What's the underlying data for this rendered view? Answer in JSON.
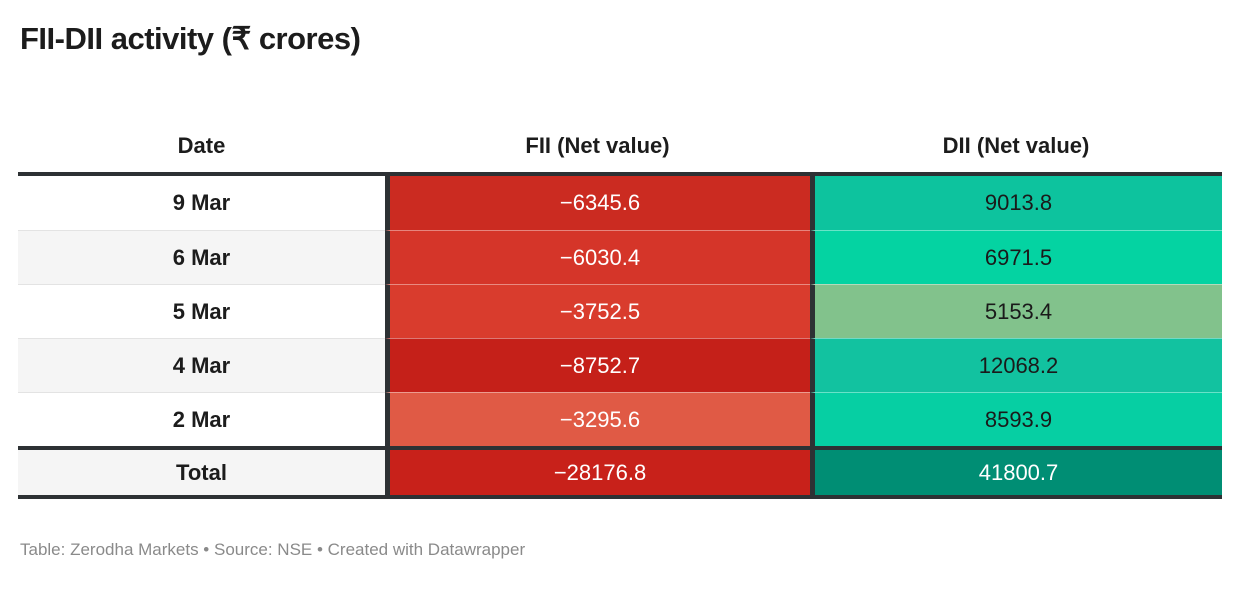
{
  "title": "FII-DII activity (₹ crores)",
  "table": {
    "headers": {
      "date": "Date",
      "fii": "FII (Net value)",
      "dii": "DII (Net value)"
    },
    "rows": [
      {
        "date": "9 Mar",
        "fii": "−6345.6",
        "dii": "9013.8",
        "date_bg": "#ffffff",
        "fii_bg": "#cb2b21",
        "dii_bg": "#0dc39e",
        "fii_fg": "#ffffff",
        "dii_fg": "#1a1a1a"
      },
      {
        "date": "6 Mar",
        "fii": "−6030.4",
        "dii": "6971.5",
        "date_bg": "#f5f5f5",
        "fii_bg": "#d53529",
        "dii_bg": "#04d3a2",
        "fii_fg": "#ffffff",
        "dii_fg": "#1a1a1a"
      },
      {
        "date": "5 Mar",
        "fii": "−3752.5",
        "dii": "5153.4",
        "date_bg": "#ffffff",
        "fii_bg": "#d93c2d",
        "dii_bg": "#82c28c",
        "fii_fg": "#ffffff",
        "dii_fg": "#1a1a1a"
      },
      {
        "date": "4 Mar",
        "fii": "−8752.7",
        "dii": "12068.2",
        "date_bg": "#f5f5f5",
        "fii_bg": "#c52019",
        "dii_bg": "#12c2a0",
        "fii_fg": "#ffffff",
        "dii_fg": "#1a1a1a"
      },
      {
        "date": "2 Mar",
        "fii": "−3295.6",
        "dii": "8593.9",
        "date_bg": "#ffffff",
        "fii_bg": "#e05a45",
        "dii_bg": "#06cfa3",
        "fii_fg": "#ffffff",
        "dii_fg": "#1a1a1a"
      }
    ],
    "total_row": {
      "date": "Total",
      "fii": "−28176.8",
      "dii": "41800.7",
      "date_bg": "#f5f5f5",
      "fii_bg": "#c8211a",
      "dii_bg": "#008e74",
      "fii_fg": "#ffffff",
      "dii_fg": "#ffffff"
    }
  },
  "footer": "Table: Zerodha Markets • Source: NSE • Created with Datawrapper",
  "chart_data": {
    "type": "table",
    "title": "FII-DII activity (₹ crores)",
    "categories": [
      "9 Mar",
      "6 Mar",
      "5 Mar",
      "4 Mar",
      "2 Mar"
    ],
    "series": [
      {
        "name": "FII (Net value)",
        "values": [
          -6345.6,
          -6030.4,
          -3752.5,
          -8752.7,
          -3295.6
        ],
        "total": -28176.8
      },
      {
        "name": "DII (Net value)",
        "values": [
          9013.8,
          6971.5,
          5153.4,
          12068.2,
          8593.9
        ],
        "total": 41800.7
      }
    ],
    "color_encoding": {
      "fii_negative_scale": [
        "#e05a45",
        "#d93c2d",
        "#c52019"
      ],
      "dii_positive_scale": [
        "#82c28c",
        "#04d3a2",
        "#0dc39e"
      ]
    }
  }
}
